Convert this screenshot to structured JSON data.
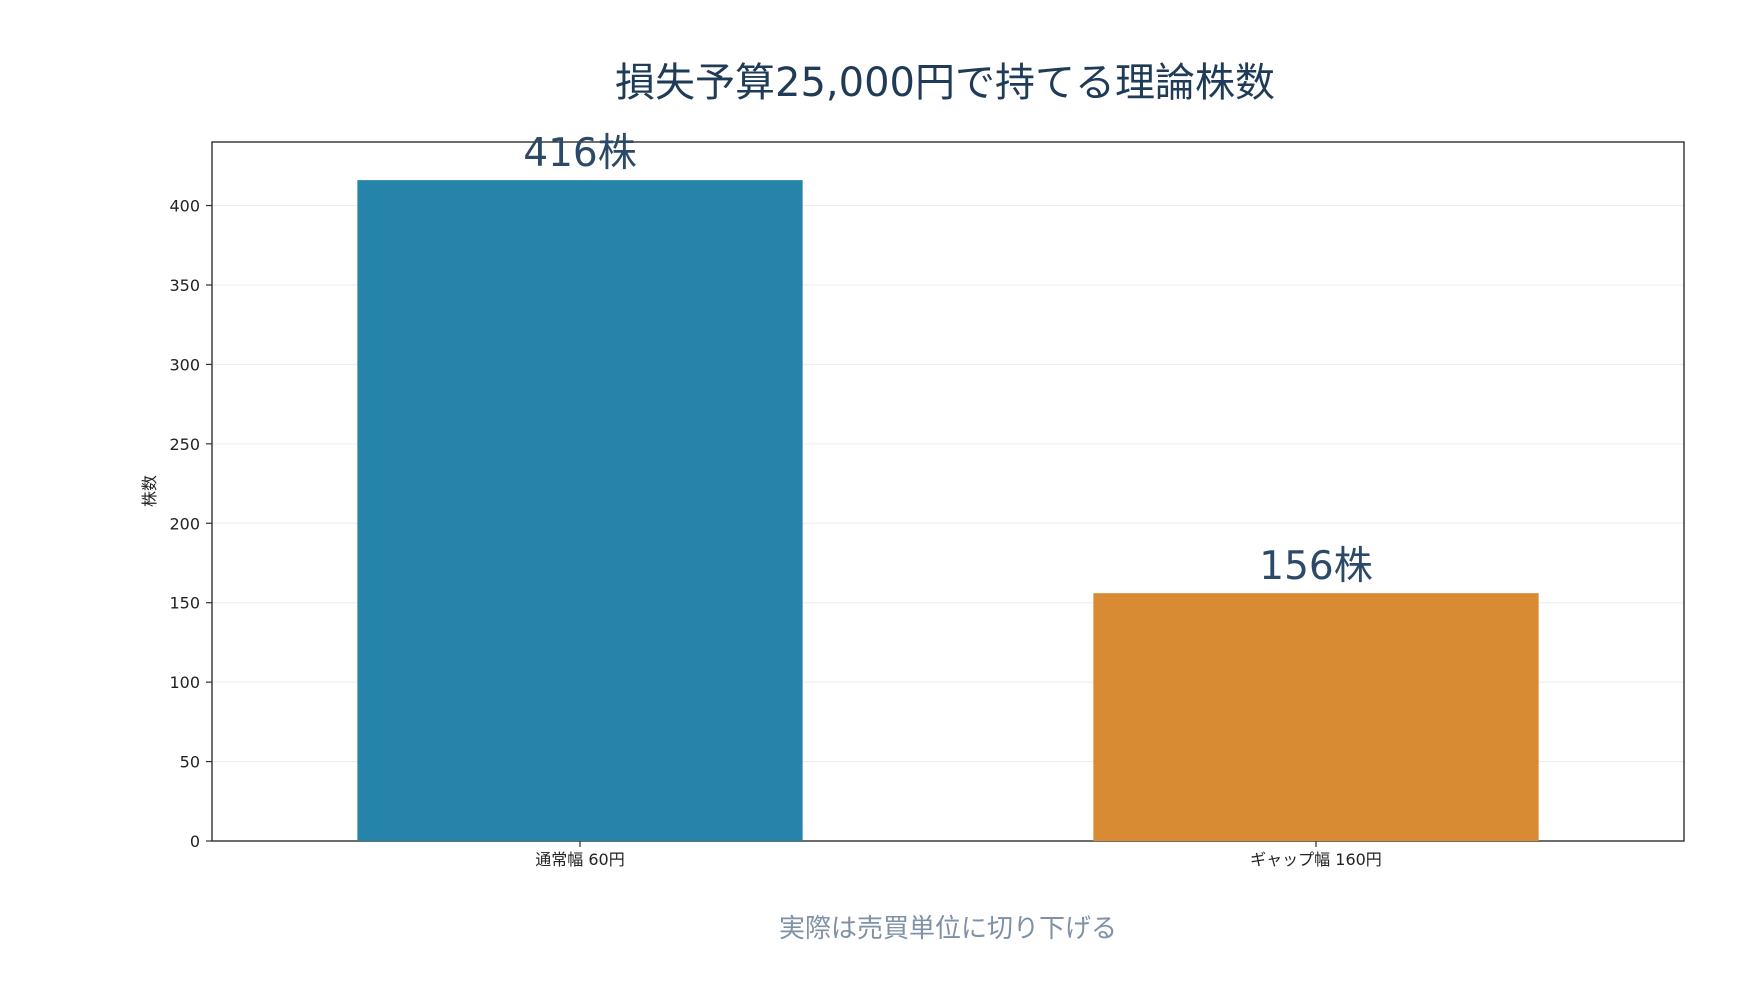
{
  "chart_data": {
    "type": "bar",
    "title": "損失予算25,000円で持てる理論株数",
    "ylabel": "株数",
    "xlabel": "",
    "categories": [
      "通常幅 60円",
      "ギャップ幅 160円"
    ],
    "values": [
      416,
      156
    ],
    "value_labels": [
      "416株",
      "156株"
    ],
    "colors": [
      "#2683a9",
      "#d98b33"
    ],
    "ylim": [
      0,
      440
    ],
    "yticks": [
      0,
      50,
      100,
      150,
      200,
      250,
      300,
      350,
      400
    ],
    "grid": "horizontal",
    "annotation": "実際は売買単位に切り下げる"
  }
}
